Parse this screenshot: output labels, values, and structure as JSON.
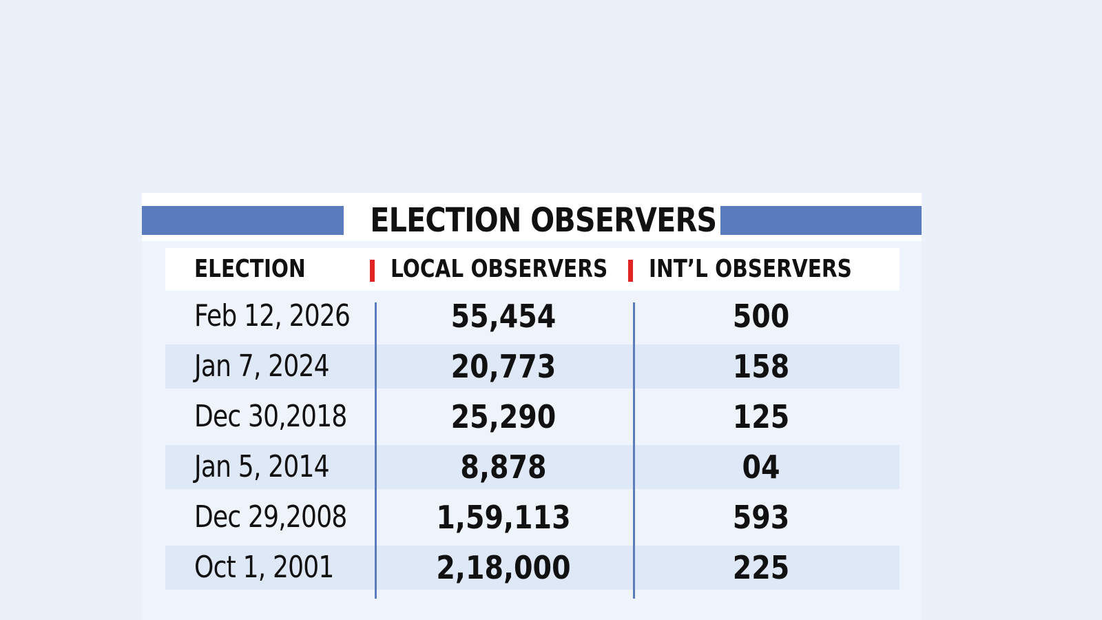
{
  "colors": {
    "background": "#ecf0f8",
    "card": "#eff3fb",
    "accent_blue": "#5a7cbf",
    "separator_red": "#e02424",
    "row_shade": "#dfe8f6",
    "text": "#111111"
  },
  "chart_data": {
    "type": "table",
    "title": "ELECTION OBSERVERS",
    "columns": [
      "ELECTION",
      "LOCAL OBSERVERS",
      "INT’L OBSERVERS"
    ],
    "rows": [
      {
        "election": "Feb 12, 2026",
        "local": "55,454",
        "intl": "500"
      },
      {
        "election": "Jan 7, 2024",
        "local": "20,773",
        "intl": "158"
      },
      {
        "election": "Dec 30,2018",
        "local": "25,290",
        "intl": "125"
      },
      {
        "election": "Jan 5, 2014",
        "local": "8,878",
        "intl": "04"
      },
      {
        "election": "Dec 29,2008",
        "local": "1,59,113",
        "intl": "593"
      },
      {
        "election": "Oct 1, 2001",
        "local": "2,18,000",
        "intl": "225"
      }
    ]
  }
}
